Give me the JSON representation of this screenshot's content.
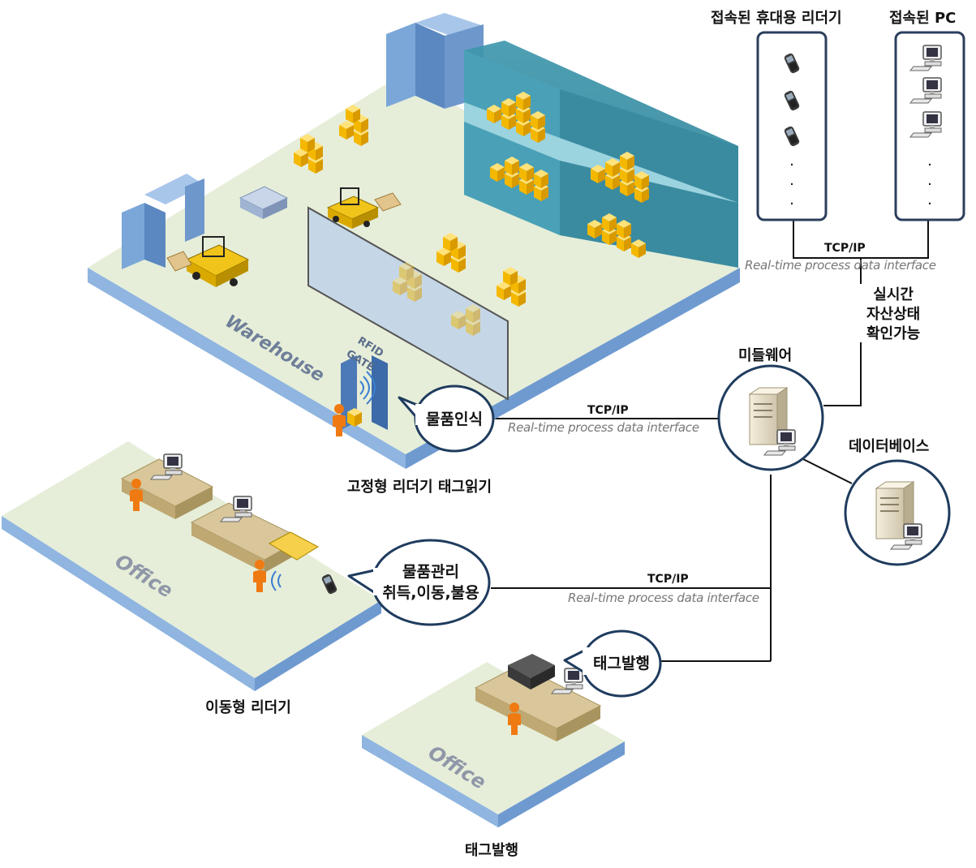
{
  "top": {
    "portable_readers_label": "접속된 휴대용 리더기",
    "pc_label": "접속된 PC"
  },
  "links": {
    "top_protocol": "TCP/IP",
    "top_interface": "Real-time process data interface",
    "warehouse_protocol": "TCP/IP",
    "warehouse_interface": "Real-time process data interface",
    "office_protocol": "TCP/IP",
    "office_interface": "Real-time process data interface"
  },
  "realtime_note": [
    "실시간",
    "자산상태",
    "확인가능"
  ],
  "middleware_label": "미들웨어",
  "database_label": "데이터베이스",
  "warehouse": {
    "floor_text": "Warehouse",
    "gate_text": [
      "RFID",
      "GATE"
    ],
    "bubble": "물품인식",
    "caption": "고정형 리더기 태그읽기"
  },
  "office_mobile": {
    "floor_text": "Office",
    "bubble": [
      "물품관리",
      "취득,이동,불용"
    ],
    "caption": "이동형 리더기"
  },
  "office_tag": {
    "floor_text": "Office",
    "bubble": "태그발행",
    "caption": "태그발행"
  },
  "colors": {
    "floor_top": "#e6eed9",
    "floor_side": "#7ea7d8",
    "rack": "#3d8fa6",
    "box": "#f6c20a",
    "person": "#f07a12",
    "gate": "#5f8ec9",
    "circle_border": "#1f3c5e"
  }
}
